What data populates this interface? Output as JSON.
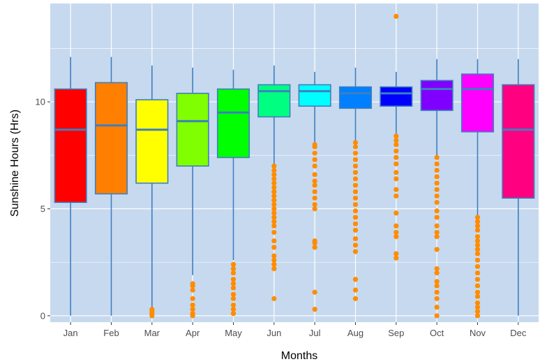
{
  "chart_data": {
    "type": "box",
    "title": "",
    "xlabel": "Months",
    "ylabel": "Sunshine Hours (Hrs)",
    "categories": [
      "Jan",
      "Feb",
      "Mar",
      "Apr",
      "May",
      "Jun",
      "Jul",
      "Aug",
      "Sep",
      "Oct",
      "Nov",
      "Dec"
    ],
    "y_ticks": [
      0,
      5,
      10
    ],
    "y_tick_labels": [
      "0",
      "5",
      "10"
    ],
    "ylim": [
      -0.3,
      14.6
    ],
    "grid": true,
    "colors": {
      "panel_bg": "#c6d9ef",
      "grid": "#ffffff",
      "box_outline": "#3d7fbf",
      "outliers": "#ff8c00"
    },
    "boxes": [
      {
        "month": "Jan",
        "fill": "#ff0000",
        "min": 0.0,
        "q1": 5.3,
        "median": 8.7,
        "q3": 10.6,
        "max": 12.1,
        "outliers": []
      },
      {
        "month": "Feb",
        "fill": "#ff7f00",
        "min": 0.0,
        "q1": 5.7,
        "median": 8.9,
        "q3": 10.9,
        "max": 12.1,
        "outliers": []
      },
      {
        "month": "Mar",
        "fill": "#ffff00",
        "min": 0.4,
        "q1": 6.2,
        "median": 8.7,
        "q3": 10.1,
        "max": 11.7,
        "outliers": [
          0.0,
          0.1,
          0.2,
          0.3
        ]
      },
      {
        "month": "Apr",
        "fill": "#80ff00",
        "min": 1.9,
        "q1": 7.0,
        "median": 9.1,
        "q3": 10.4,
        "max": 11.6,
        "outliers": [
          0.0,
          0.1,
          0.3,
          0.5,
          0.8,
          1.2,
          1.4,
          1.5
        ]
      },
      {
        "month": "May",
        "fill": "#00ff00",
        "min": 2.6,
        "q1": 7.4,
        "median": 9.5,
        "q3": 10.6,
        "max": 11.5,
        "outliers": [
          0.1,
          0.3,
          0.5,
          0.8,
          1.0,
          1.3,
          1.5,
          1.7,
          2.0,
          2.2,
          2.4
        ]
      },
      {
        "month": "Jun",
        "fill": "#00ff80",
        "min": 7.1,
        "q1": 9.3,
        "median": 10.5,
        "q3": 10.8,
        "max": 11.7,
        "outliers": [
          0.8,
          2.2,
          2.4,
          2.6,
          2.8,
          3.2,
          3.5,
          3.9,
          4.2,
          4.4,
          4.6,
          4.8,
          5.0,
          5.2,
          5.4,
          5.6,
          5.8,
          6.0,
          6.2,
          6.4,
          6.6,
          6.8,
          7.0
        ]
      },
      {
        "month": "Jul",
        "fill": "#00ffff",
        "min": 8.1,
        "q1": 9.8,
        "median": 10.5,
        "q3": 10.8,
        "max": 11.4,
        "outliers": [
          0.3,
          1.1,
          3.2,
          3.4,
          3.5,
          5.0,
          5.2,
          5.5,
          5.8,
          6.1,
          6.3,
          6.6,
          7.0,
          7.3,
          7.6,
          7.9,
          8.0
        ]
      },
      {
        "month": "Aug",
        "fill": "#0080ff",
        "min": 8.2,
        "q1": 9.7,
        "median": 10.4,
        "q3": 10.7,
        "max": 11.6,
        "outliers": [
          0.8,
          1.2,
          1.7,
          3.0,
          3.3,
          3.6,
          4.0,
          4.3,
          4.6,
          4.9,
          5.2,
          5.5,
          5.8,
          6.1,
          6.4,
          6.7,
          7.0,
          7.3,
          7.6,
          7.9,
          8.1
        ]
      },
      {
        "month": "Sep",
        "fill": "#0000ff",
        "min": 8.5,
        "q1": 9.8,
        "median": 10.4,
        "q3": 10.7,
        "max": 11.4,
        "outliers": [
          2.7,
          2.9,
          3.7,
          3.9,
          4.2,
          4.8,
          5.6,
          5.9,
          6.4,
          6.7,
          7.1,
          7.4,
          7.7,
          8.0,
          8.2,
          8.4,
          14.0
        ]
      },
      {
        "month": "Oct",
        "fill": "#8000ff",
        "min": 7.5,
        "q1": 9.6,
        "median": 10.6,
        "q3": 11.0,
        "max": 12.0,
        "outliers": [
          0.0,
          0.4,
          0.8,
          1.1,
          1.4,
          1.6,
          2.0,
          2.2,
          3.1,
          3.7,
          3.9,
          4.2,
          4.6,
          4.9,
          5.3,
          5.6,
          5.9,
          6.2,
          6.5,
          6.8,
          7.1,
          7.4
        ]
      },
      {
        "month": "Nov",
        "fill": "#ff00ff",
        "min": 4.7,
        "q1": 8.6,
        "median": 10.6,
        "q3": 11.3,
        "max": 12.0,
        "outliers": [
          0.0,
          0.2,
          0.4,
          0.6,
          0.9,
          1.1,
          1.4,
          1.7,
          2.0,
          2.3,
          2.6,
          2.9,
          3.1,
          3.3,
          3.5,
          3.7,
          4.0,
          4.2,
          4.4,
          4.6
        ]
      },
      {
        "month": "Dec",
        "fill": "#ff0080",
        "min": 0.0,
        "q1": 5.5,
        "median": 8.7,
        "q3": 10.8,
        "max": 12.0,
        "outliers": []
      }
    ]
  }
}
